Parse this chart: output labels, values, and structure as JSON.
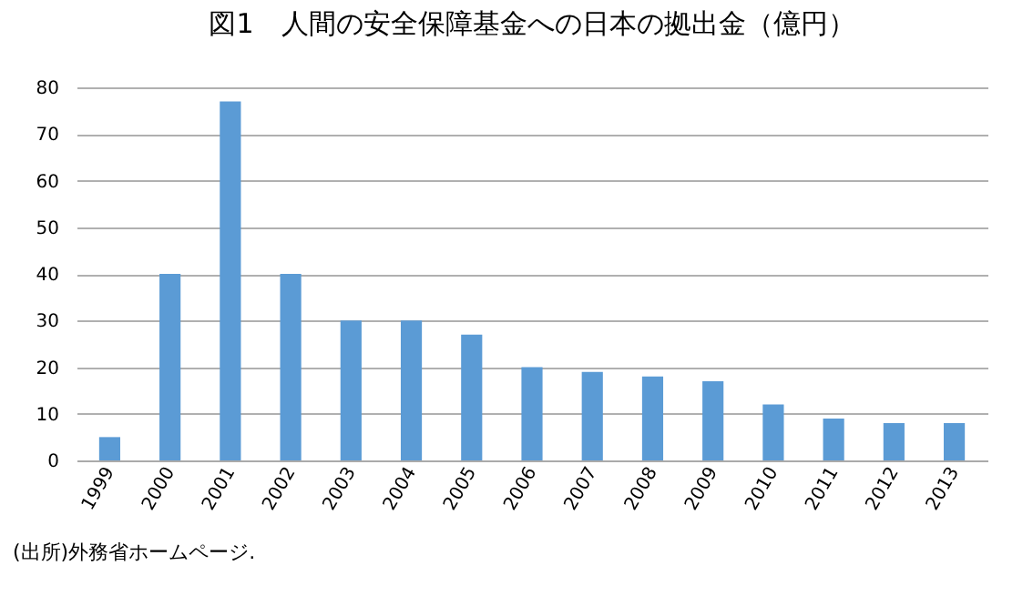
{
  "chart_data": {
    "type": "bar",
    "title": "図1　人間の安全保障基金への日本の拠出金（億円）",
    "categories": [
      "1999",
      "2000",
      "2001",
      "2002",
      "2003",
      "2004",
      "2005",
      "2006",
      "2007",
      "2008",
      "2009",
      "2010",
      "2011",
      "2012",
      "2013"
    ],
    "values": [
      5,
      40,
      77,
      40,
      30,
      30,
      27,
      20,
      19,
      18,
      17,
      12,
      9,
      8,
      8
    ],
    "color": "#5b9bd5",
    "ylim": [
      0,
      80
    ],
    "yticks": [
      0,
      10,
      20,
      30,
      40,
      50,
      60,
      70,
      80
    ],
    "grid": "y",
    "annotations": [
      "(出所)外務省ホームページ."
    ]
  }
}
